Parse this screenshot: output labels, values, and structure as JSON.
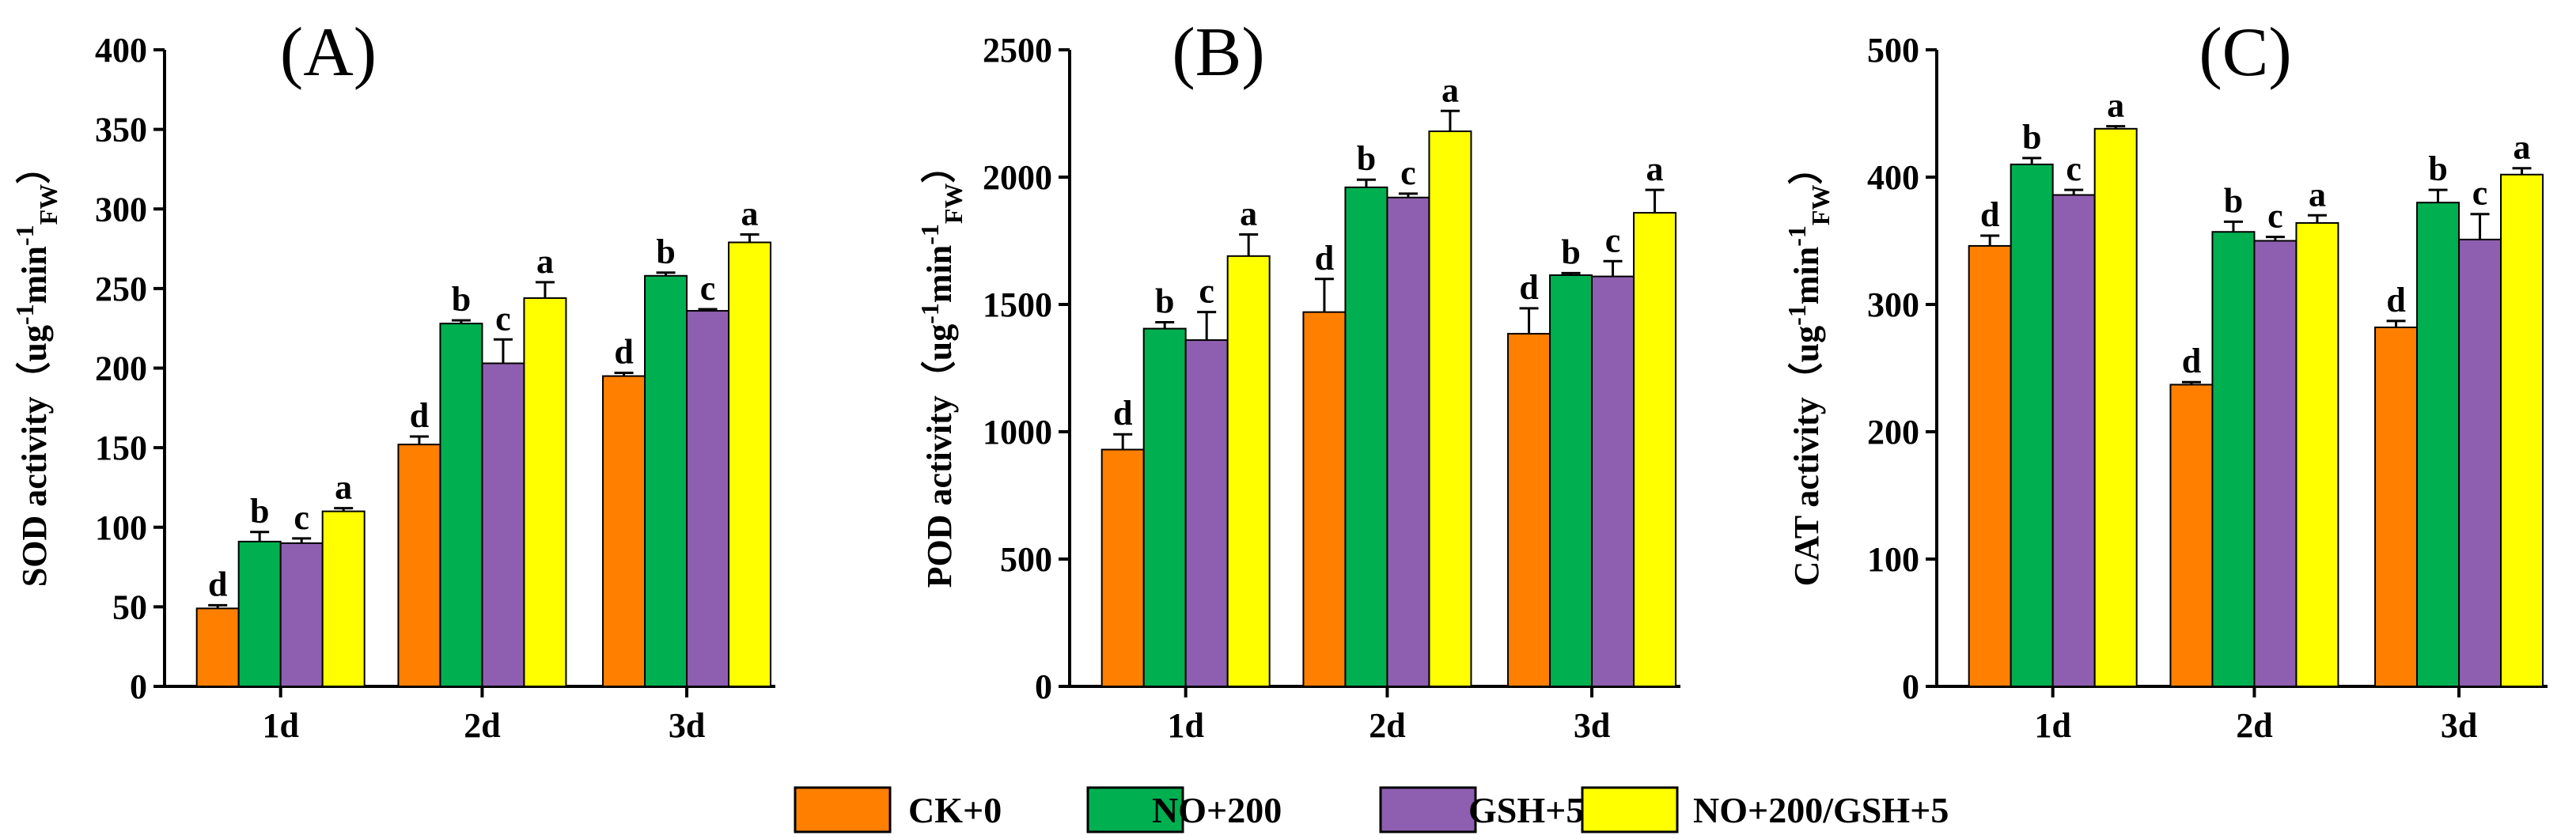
{
  "colors": [
    "#ff7f00",
    "#00b050",
    "#8e5fb0",
    "#ffff00"
  ],
  "legend": [
    "CK+0",
    "NO+200",
    "GSH+5",
    "NO+200/GSH+5"
  ],
  "chart_data": [
    {
      "type": "bar",
      "title": "(A)",
      "ylabel_main": "SOD activity（ug",
      "ylabel_sup1": "-1",
      "ylabel_mid": "min",
      "ylabel_sup2": "-1",
      "ylabel_sub": "FW",
      "ylabel_end": "）",
      "categories": [
        "1d",
        "2d",
        "3d"
      ],
      "ylim": [
        0,
        400
      ],
      "yticks": [
        0,
        50,
        100,
        150,
        200,
        250,
        300,
        350,
        400
      ],
      "series": [
        {
          "name": "CK+0",
          "values": [
            49,
            152,
            195
          ],
          "errors": [
            2,
            5,
            2
          ],
          "labels": [
            "d",
            "d",
            "d"
          ]
        },
        {
          "name": "NO+200",
          "values": [
            91,
            228,
            258
          ],
          "errors": [
            6,
            2,
            2
          ],
          "labels": [
            "b",
            "b",
            "b"
          ]
        },
        {
          "name": "GSH+5",
          "values": [
            90,
            203,
            236
          ],
          "errors": [
            3,
            15,
            1
          ],
          "labels": [
            "c",
            "c",
            "c"
          ]
        },
        {
          "name": "NO+200/GSH+5",
          "values": [
            110,
            244,
            279
          ],
          "errors": [
            2,
            10,
            5
          ],
          "labels": [
            "a",
            "a",
            "a"
          ]
        }
      ]
    },
    {
      "type": "bar",
      "title": "(B)",
      "ylabel_main": "POD activity（ug",
      "ylabel_sup1": "-1",
      "ylabel_mid": "min",
      "ylabel_sup2": "-1",
      "ylabel_sub": "FW",
      "ylabel_end": "）",
      "categories": [
        "1d",
        "2d",
        "3d"
      ],
      "ylim": [
        0,
        2500
      ],
      "yticks": [
        0,
        500,
        1000,
        1500,
        2000,
        2500
      ],
      "series": [
        {
          "name": "CK+0",
          "values": [
            930,
            1470,
            1385
          ],
          "errors": [
            60,
            130,
            100
          ],
          "labels": [
            "d",
            "d",
            "d"
          ]
        },
        {
          "name": "NO+200",
          "values": [
            1405,
            1960,
            1615
          ],
          "errors": [
            25,
            30,
            8
          ],
          "labels": [
            "b",
            "b",
            "b"
          ]
        },
        {
          "name": "GSH+5",
          "values": [
            1360,
            1920,
            1610
          ],
          "errors": [
            110,
            15,
            60
          ],
          "labels": [
            "c",
            "c",
            "c"
          ]
        },
        {
          "name": "NO+200/GSH+5",
          "values": [
            1690,
            2180,
            1860
          ],
          "errors": [
            85,
            80,
            90
          ],
          "labels": [
            "a",
            "a",
            "a"
          ]
        }
      ]
    },
    {
      "type": "bar",
      "title": "(C)",
      "ylabel_main": "CAT activity（ug",
      "ylabel_sup1": "-1",
      "ylabel_mid": "min",
      "ylabel_sup2": "-1",
      "ylabel_sub": "FW",
      "ylabel_end": "）",
      "categories": [
        "1d",
        "2d",
        "3d"
      ],
      "ylim": [
        0,
        500
      ],
      "yticks": [
        0,
        100,
        200,
        300,
        400,
        500
      ],
      "series": [
        {
          "name": "CK+0",
          "values": [
            346,
            237,
            282
          ],
          "errors": [
            8,
            2,
            5
          ],
          "labels": [
            "d",
            "d",
            "d"
          ]
        },
        {
          "name": "NO+200",
          "values": [
            410,
            357,
            380
          ],
          "errors": [
            5,
            8,
            10
          ],
          "labels": [
            "b",
            "b",
            "b"
          ]
        },
        {
          "name": "GSH+5",
          "values": [
            386,
            350,
            351
          ],
          "errors": [
            4,
            3,
            20
          ],
          "labels": [
            "c",
            "c",
            "c"
          ]
        },
        {
          "name": "NO+200/GSH+5",
          "values": [
            438,
            364,
            402
          ],
          "errors": [
            2,
            6,
            5
          ],
          "labels": [
            "a",
            "a",
            "a"
          ]
        }
      ]
    }
  ]
}
